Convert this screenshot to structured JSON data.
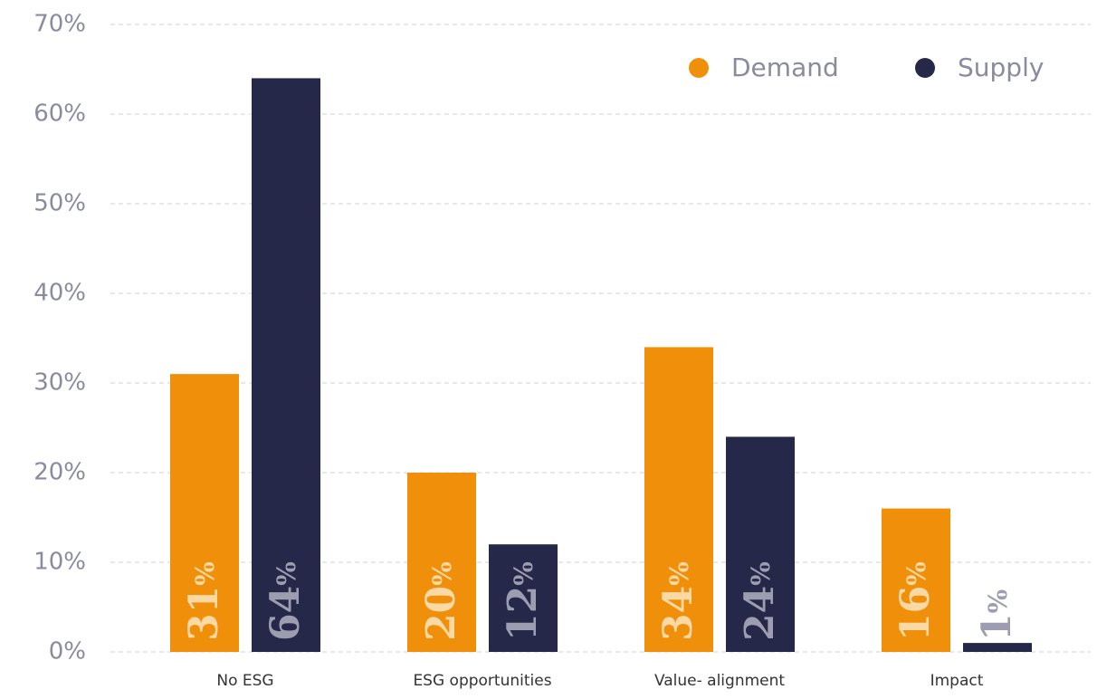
{
  "chart_data": {
    "type": "bar",
    "categories": [
      "No ESG",
      "ESG opportunities",
      "Value- alignment",
      "Impact"
    ],
    "series": [
      {
        "name": "Demand",
        "color": "#f0900a",
        "values": [
          31,
          20,
          34,
          16
        ],
        "value_labels": [
          "31%",
          "20%",
          "34%",
          "16%"
        ]
      },
      {
        "name": "Supply",
        "color": "#262849",
        "values": [
          64,
          12,
          24,
          1
        ],
        "value_labels": [
          "64%",
          "12%",
          "24%",
          "1%"
        ]
      }
    ],
    "ylim": [
      0,
      70
    ],
    "yticks": [
      {
        "value": 0,
        "label": "0%"
      },
      {
        "value": 10,
        "label": "10%"
      },
      {
        "value": 20,
        "label": "20%"
      },
      {
        "value": 30,
        "label": "30%"
      },
      {
        "value": 40,
        "label": "40%"
      },
      {
        "value": 50,
        "label": "50%"
      },
      {
        "value": 60,
        "label": "60%"
      },
      {
        "value": 70,
        "label": "70%"
      }
    ],
    "grid": true,
    "legend": "top-right"
  }
}
